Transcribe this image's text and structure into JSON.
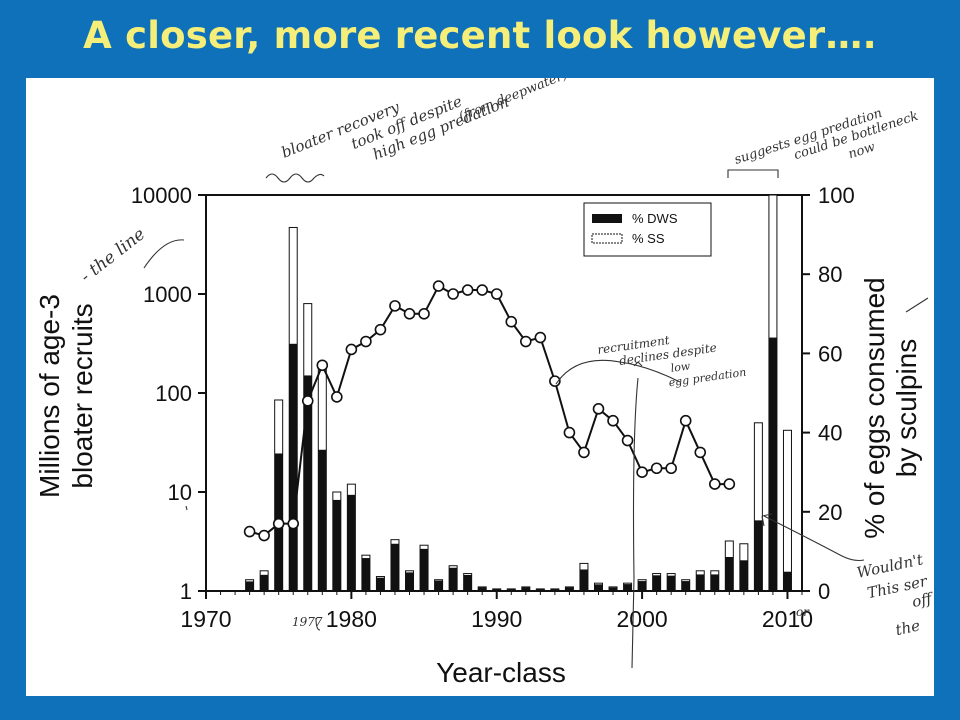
{
  "slide": {
    "title": "A closer, more recent look however…."
  },
  "chart_data": {
    "type": "bar",
    "xlabel": "Year-class",
    "ylabel_left": [
      "Millions of age-3",
      "bloater recruits"
    ],
    "ylabel_right": [
      "% of eggs consumed",
      "by sculpins"
    ],
    "x_ticks": [
      "1970",
      "1980",
      "1990",
      "2000",
      "2010"
    ],
    "y_left_ticks": [
      "1",
      "10",
      "100",
      "1000",
      "10000"
    ],
    "y_right_ticks": [
      "0",
      "20",
      "40",
      "60",
      "80",
      "100"
    ],
    "y_left_scale": "log",
    "y_left_range": [
      1,
      10000
    ],
    "y_right_range": [
      0,
      100
    ],
    "x_range": [
      1970,
      2011
    ],
    "legend": {
      "position": "top-right",
      "entries": [
        "% DWS",
        "% SS"
      ]
    },
    "bars": {
      "years": [
        1973,
        1974,
        1975,
        1976,
        1977,
        1978,
        1979,
        1980,
        1981,
        1982,
        1983,
        1984,
        1985,
        1986,
        1987,
        1988,
        1989,
        1990,
        1991,
        1992,
        1993,
        1994,
        1995,
        1996,
        1997,
        1998,
        1999,
        2000,
        2001,
        2002,
        2003,
        2004,
        2005,
        2006,
        2007,
        2008,
        2009,
        2010
      ],
      "recruits": [
        1.3,
        1.6,
        85,
        4700,
        800,
        200,
        10,
        12,
        2.3,
        1.4,
        3.3,
        1.6,
        2.9,
        1.3,
        1.8,
        1.5,
        1.1,
        1.05,
        1.05,
        1.1,
        1.05,
        1.05,
        1.1,
        1.9,
        1.2,
        1.1,
        1.2,
        1.3,
        1.5,
        1.5,
        1.3,
        1.6,
        1.6,
        3.2,
        3.0,
        50,
        10000,
        42
      ],
      "dws_share": [
        0.85,
        0.8,
        0.72,
        0.68,
        0.75,
        0.62,
        0.92,
        0.9,
        0.92,
        0.92,
        0.92,
        0.92,
        0.92,
        0.92,
        0.92,
        0.92,
        0.92,
        0.92,
        0.92,
        0.92,
        0.92,
        0.92,
        0.92,
        0.78,
        0.85,
        0.85,
        0.88,
        0.88,
        0.9,
        0.88,
        0.88,
        0.82,
        0.82,
        0.68,
        0.65,
        0.42,
        0.64,
        0.12
      ]
    },
    "line": {
      "name": "% of eggs consumed by sculpins",
      "points": [
        [
          1973,
          15
        ],
        [
          1974,
          14
        ],
        [
          1975,
          17
        ],
        [
          1976,
          17
        ],
        [
          1977,
          48
        ],
        [
          1978,
          57
        ],
        [
          1979,
          49
        ],
        [
          1980,
          61
        ],
        [
          1981,
          63
        ],
        [
          1982,
          66
        ],
        [
          1983,
          72
        ],
        [
          1984,
          70
        ],
        [
          1985,
          70
        ],
        [
          1986,
          77
        ],
        [
          1987,
          75
        ],
        [
          1988,
          76
        ],
        [
          1989,
          76
        ],
        [
          1990,
          75
        ],
        [
          1991,
          68
        ],
        [
          1992,
          63
        ],
        [
          1993,
          64
        ],
        [
          1994,
          53
        ],
        [
          1995,
          40
        ],
        [
          1996,
          35
        ],
        [
          1997,
          46
        ],
        [
          1998,
          43
        ],
        [
          1999,
          38
        ],
        [
          2000,
          30
        ],
        [
          2001,
          31
        ],
        [
          2002,
          31
        ],
        [
          2003,
          43
        ],
        [
          2004,
          35
        ],
        [
          2005,
          27
        ],
        [
          2006,
          27
        ]
      ]
    }
  },
  "annotations": {
    "note1": [
      "bloater recovery",
      "took off despite",
      "high egg predation",
      "(from deepwater)"
    ],
    "note2": [
      "suggests egg predation",
      "could be bottleneck",
      "now"
    ],
    "note3": [
      "recruitment",
      "declines despite",
      "low",
      "egg predation"
    ],
    "note4": "- the line",
    "note5": "1977",
    "note6": "or",
    "note7": [
      "Wouldn't",
      "This ser",
      "off",
      "the",
      "y"
    ]
  }
}
